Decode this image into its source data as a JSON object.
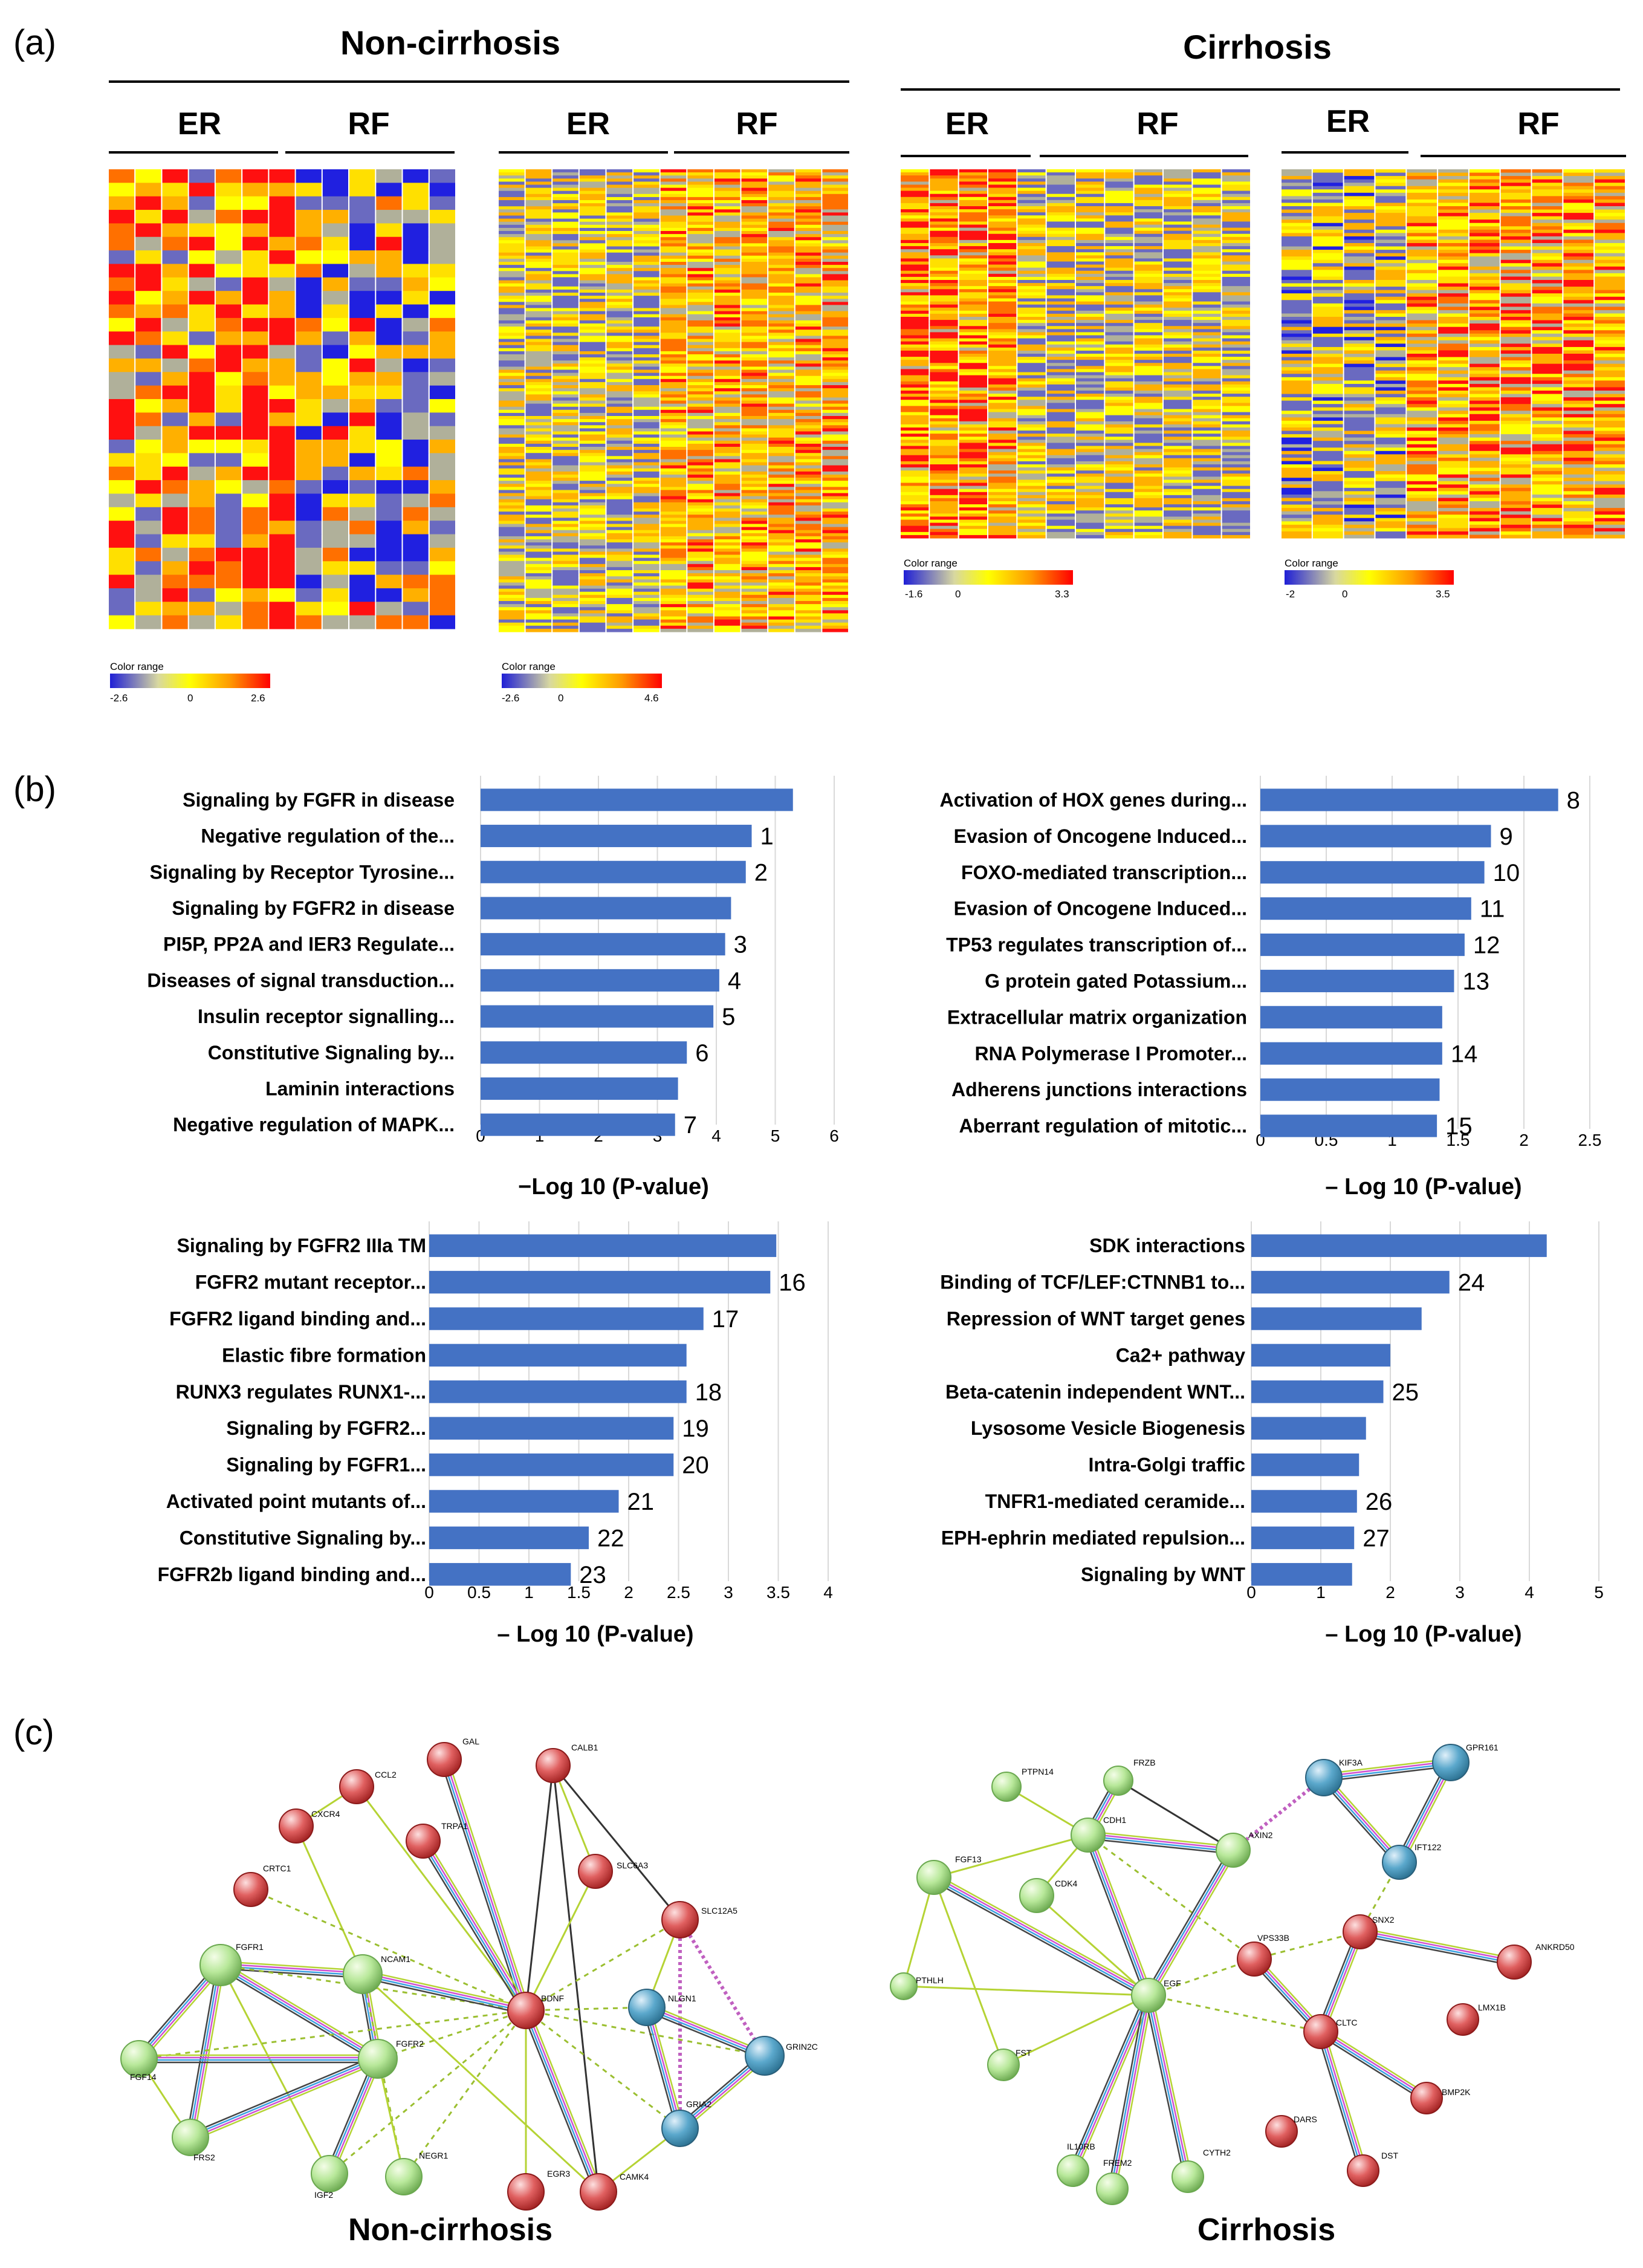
{
  "panels": {
    "a": "(a)",
    "b": "(b)",
    "c": "(c)"
  },
  "headers": {
    "non_cirrhosis": "Non-cirrhosis",
    "cirrhosis": "Cirrhosis",
    "er": "ER",
    "rf": "RF"
  },
  "color_range_label": "Color range",
  "colors": {
    "bar": "#4472c4",
    "low": "#2a2ad8",
    "mid": "#ffff00",
    "high": "#ff0000",
    "green_node": "#a9e08a",
    "red_node": "#e05a5a",
    "blue_node": "#4b9bc0"
  },
  "heatmaps": [
    {
      "id": "hm1",
      "legend": {
        "min": "-2.6",
        "zero": "0",
        "max": "2.6"
      }
    },
    {
      "id": "hm2",
      "legend": {
        "min": "-2.6",
        "zero": "0",
        "max": "4.6"
      }
    },
    {
      "id": "hm3",
      "legend": {
        "min": "-1.6",
        "zero": "0",
        "max": "3.3"
      }
    },
    {
      "id": "hm4",
      "legend": {
        "min": "-2",
        "zero": "0",
        "max": "3.5"
      }
    }
  ],
  "chart_data": [
    {
      "type": "bar",
      "orientation": "horizontal",
      "xlabel": "−Log 10 (P-value)",
      "xlim": [
        0,
        6
      ],
      "ticks": [
        "0",
        "1",
        "2",
        "3",
        "4",
        "5",
        "6"
      ],
      "categories": [
        "Signaling by FGFR in disease",
        "Negative regulation of the...",
        "Signaling by Receptor Tyrosine...",
        "Signaling by FGFR2 in disease",
        "PI5P, PP2A and IER3 Regulate...",
        "Diseases of signal transduction...",
        "Insulin receptor signalling...",
        "Constitutive Signaling by...",
        "Laminin interactions",
        "Negative regulation of MAPK..."
      ],
      "values": [
        5.3,
        4.6,
        4.5,
        4.25,
        4.15,
        4.05,
        3.95,
        3.5,
        3.35,
        3.3
      ],
      "annotations": [
        "",
        "1",
        "2",
        "",
        "3",
        "4",
        "5",
        "6",
        "",
        "7"
      ]
    },
    {
      "type": "bar",
      "orientation": "horizontal",
      "xlabel": "– Log 10 (P-value)",
      "xlim": [
        0,
        2.5
      ],
      "ticks": [
        "0",
        "0.5",
        "1",
        "1.5",
        "2",
        "2.5"
      ],
      "categories": [
        "Activation of HOX genes during...",
        "Evasion of Oncogene Induced...",
        "FOXO-mediated transcription...",
        "Evasion of Oncogene Induced...",
        "TP53 regulates transcription of...",
        "G protein gated Potassium...",
        "Extracellular matrix organization",
        "RNA Polymerase I Promoter...",
        "Adherens junctions interactions",
        "Aberrant regulation of mitotic..."
      ],
      "values": [
        2.26,
        1.75,
        1.7,
        1.6,
        1.55,
        1.47,
        1.38,
        1.38,
        1.36,
        1.34
      ],
      "annotations": [
        "8",
        "9",
        "10",
        "11",
        "12",
        "13",
        "",
        "14",
        "",
        "15"
      ]
    },
    {
      "type": "bar",
      "orientation": "horizontal",
      "xlabel": "– Log 10 (P-value)",
      "xlim": [
        0,
        4
      ],
      "ticks": [
        "0",
        "0.5",
        "1",
        "1.5",
        "2",
        "2.5",
        "3",
        "3.5",
        "4"
      ],
      "categories": [
        "Signaling by FGFR2 IIIa TM",
        "FGFR2 mutant receptor...",
        "FGFR2 ligand binding and...",
        "Elastic fibre formation",
        "RUNX3 regulates RUNX1-...",
        "Signaling by FGFR2...",
        "Signaling by FGFR1...",
        "Activated point mutants of...",
        "Constitutive Signaling by...",
        "FGFR2b ligand binding and..."
      ],
      "values": [
        3.48,
        3.42,
        2.75,
        2.58,
        2.58,
        2.45,
        2.45,
        1.9,
        1.6,
        1.42
      ],
      "annotations": [
        "",
        "16",
        "17",
        "",
        "18",
        "19",
        "20",
        "21",
        "22",
        "23"
      ]
    },
    {
      "type": "bar",
      "orientation": "horizontal",
      "xlabel": "– Log 10 (P-value)",
      "xlim": [
        0,
        5
      ],
      "ticks": [
        "0",
        "1",
        "2",
        "3",
        "4",
        "5"
      ],
      "categories": [
        "SDK interactions",
        "Binding of TCF/LEF:CTNNB1 to...",
        "Repression of WNT target genes",
        "Ca2+ pathway",
        "Beta-catenin independent WNT...",
        "Lysosome Vesicle Biogenesis",
        "Intra-Golgi traffic",
        "TNFR1-mediated ceramide...",
        "EPH-ephrin mediated repulsion...",
        "Signaling by WNT"
      ],
      "values": [
        4.25,
        2.85,
        2.45,
        2.0,
        1.9,
        1.65,
        1.55,
        1.52,
        1.48,
        1.45
      ],
      "annotations": [
        "",
        "24",
        "",
        "",
        "25",
        "",
        "",
        "26",
        "27",
        ""
      ]
    }
  ],
  "networks": {
    "non_cirrhosis": {
      "label": "Non-cirrhosis",
      "nodes": [
        {
          "name": "GAL",
          "color": "red"
        },
        {
          "name": "CALB1",
          "color": "red"
        },
        {
          "name": "CCL2",
          "color": "red"
        },
        {
          "name": "CXCR4",
          "color": "red"
        },
        {
          "name": "TRPA1",
          "color": "red"
        },
        {
          "name": "CRTC1",
          "color": "red"
        },
        {
          "name": "SLC6A3",
          "color": "red"
        },
        {
          "name": "SLC12A5",
          "color": "red"
        },
        {
          "name": "FGFR1",
          "color": "green"
        },
        {
          "name": "NCAM1",
          "color": "green"
        },
        {
          "name": "BDNF",
          "color": "red"
        },
        {
          "name": "NLGN1",
          "color": "blue"
        },
        {
          "name": "GRIN2C",
          "color": "blue"
        },
        {
          "name": "FGF14",
          "color": "green"
        },
        {
          "name": "FGFR2",
          "color": "green"
        },
        {
          "name": "GRIA2",
          "color": "blue"
        },
        {
          "name": "FRS2",
          "color": "green"
        },
        {
          "name": "IGF2",
          "color": "green"
        },
        {
          "name": "NEGR1",
          "color": "green"
        },
        {
          "name": "EGR3",
          "color": "red"
        },
        {
          "name": "CAMK4",
          "color": "red"
        }
      ]
    },
    "cirrhosis": {
      "label": "Cirrhosis",
      "nodes": [
        {
          "name": "PTPN14",
          "color": "green"
        },
        {
          "name": "FRZB",
          "color": "green"
        },
        {
          "name": "KIF3A",
          "color": "blue"
        },
        {
          "name": "GPR161",
          "color": "blue"
        },
        {
          "name": "CDH1",
          "color": "green"
        },
        {
          "name": "AXIN2",
          "color": "green"
        },
        {
          "name": "IFT122",
          "color": "blue"
        },
        {
          "name": "FGF13",
          "color": "green"
        },
        {
          "name": "CDK4",
          "color": "green"
        },
        {
          "name": "SNX2",
          "color": "red"
        },
        {
          "name": "VPS33B",
          "color": "red"
        },
        {
          "name": "ANKRD50",
          "color": "red"
        },
        {
          "name": "PTHLH",
          "color": "green"
        },
        {
          "name": "EGF",
          "color": "green"
        },
        {
          "name": "CLTC",
          "color": "red"
        },
        {
          "name": "LMX1B",
          "color": "red"
        },
        {
          "name": "FST",
          "color": "green"
        },
        {
          "name": "BMP2K",
          "color": "red"
        },
        {
          "name": "DARS",
          "color": "red"
        },
        {
          "name": "DST",
          "color": "red"
        },
        {
          "name": "IL10RB",
          "color": "green"
        },
        {
          "name": "FREM2",
          "color": "green"
        },
        {
          "name": "CYTH2",
          "color": "green"
        }
      ]
    }
  }
}
